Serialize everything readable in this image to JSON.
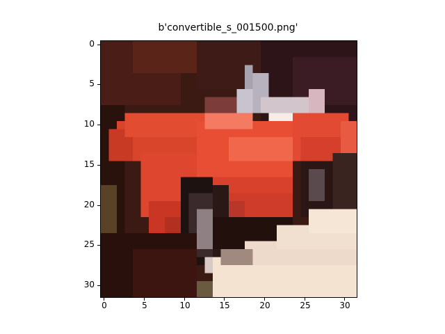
{
  "title": "b'convertible_s_001500.png'",
  "image": {
    "subject": "red convertible car, pixelated 32x32 image",
    "colors": {
      "background_dark": "#3a1a12",
      "car_red": "#e2472e",
      "car_highlight": "#f47a62",
      "tire_dark": "#1e1210",
      "floor_light": "#f3e3d0",
      "windshield": "#c7c4cf"
    }
  },
  "axes": {
    "y_ticks": [
      "0",
      "5",
      "10",
      "15",
      "20",
      "25",
      "30"
    ],
    "x_ticks": [
      "0",
      "5",
      "10",
      "15",
      "20",
      "25",
      "30"
    ]
  }
}
